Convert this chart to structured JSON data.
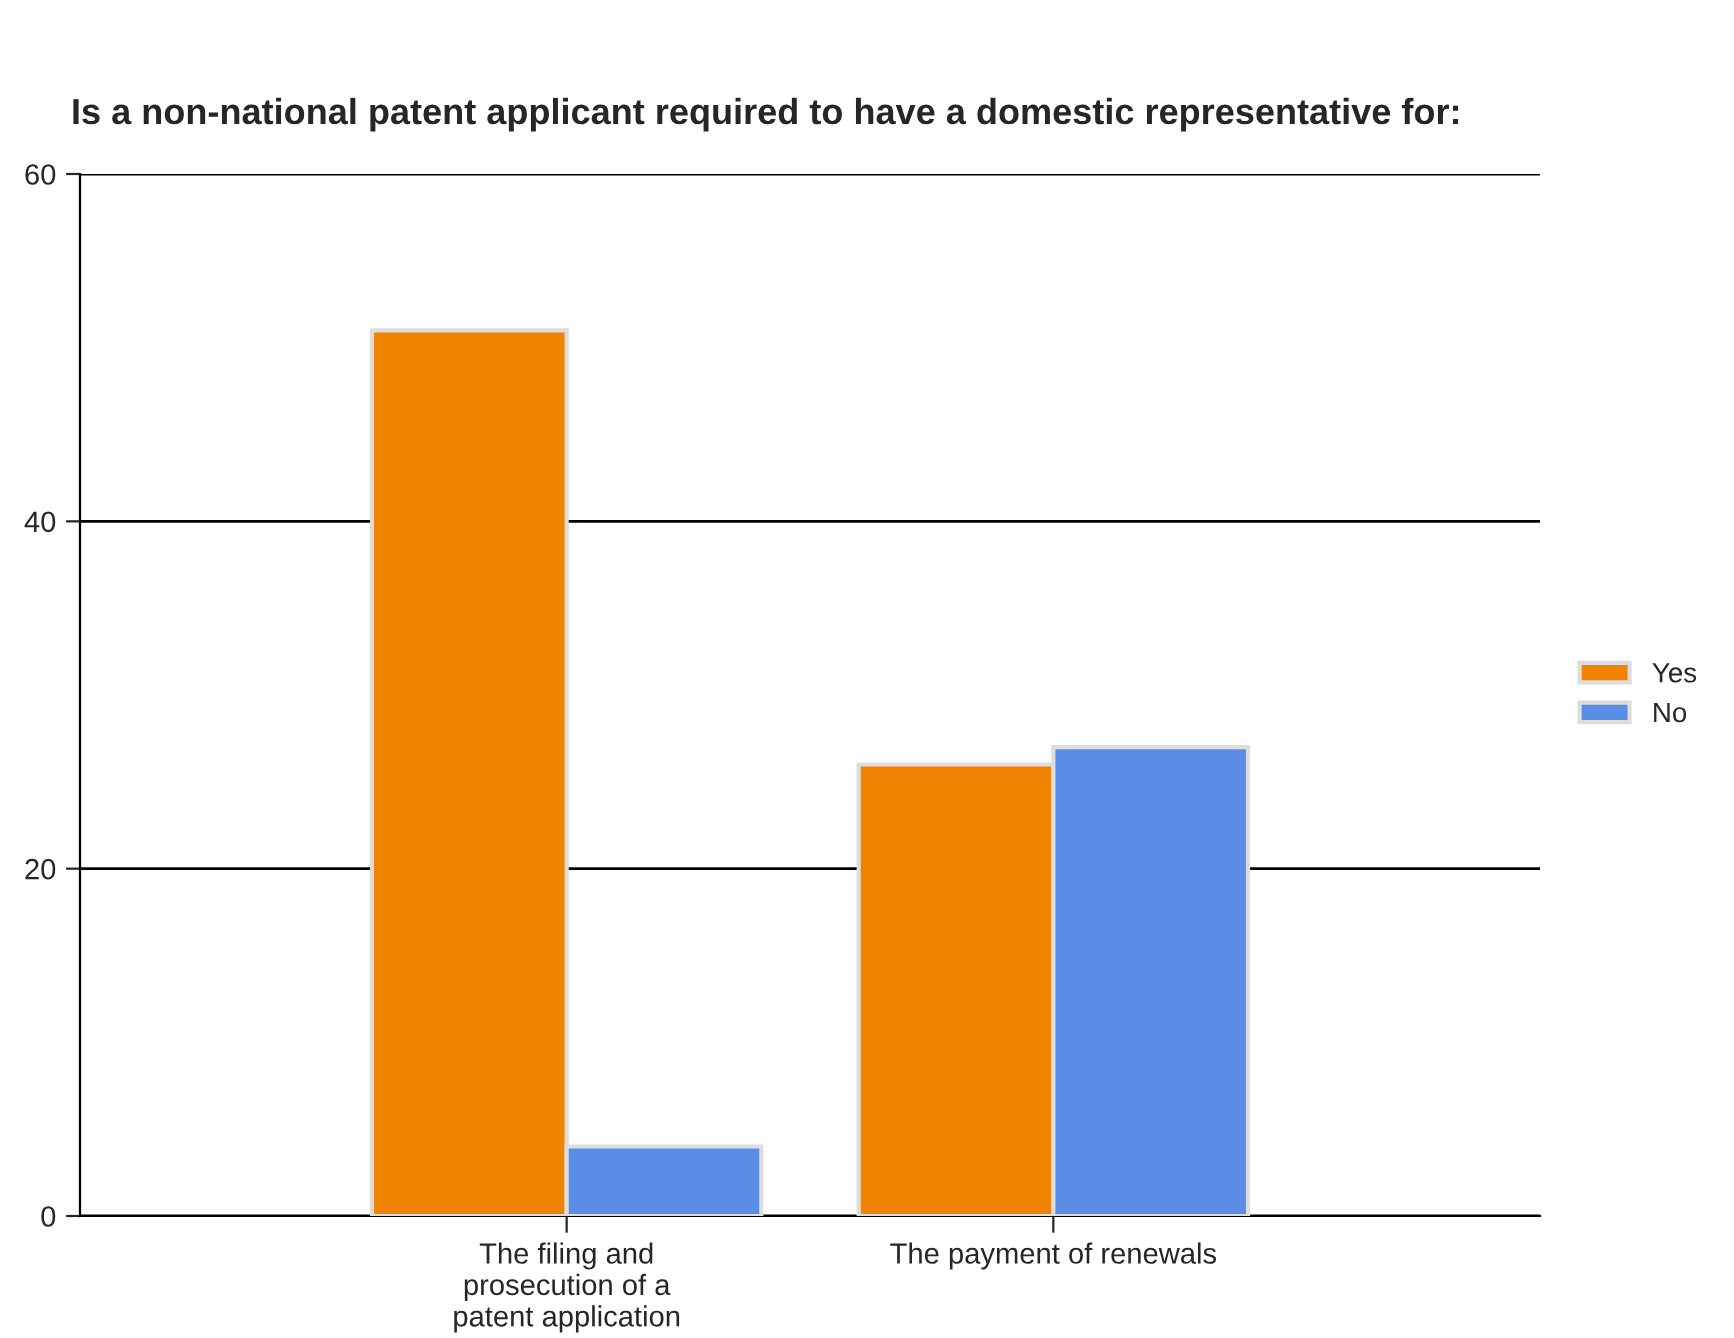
{
  "chart_data": {
    "type": "bar",
    "title": "Is a non-national patent applicant required to have a domestic representative for:",
    "categories": [
      "The filing and\nprosecution of a\npatent application",
      "The payment of renewals"
    ],
    "series": [
      {
        "name": "Yes",
        "color": "#f08300",
        "values": [
          51,
          26
        ]
      },
      {
        "name": "No",
        "color": "#5a8ee6",
        "values": [
          4,
          27
        ]
      }
    ],
    "ylim": [
      0,
      60
    ],
    "yticks": [
      0,
      20,
      40,
      60
    ],
    "grid": "y",
    "legend": "right"
  }
}
